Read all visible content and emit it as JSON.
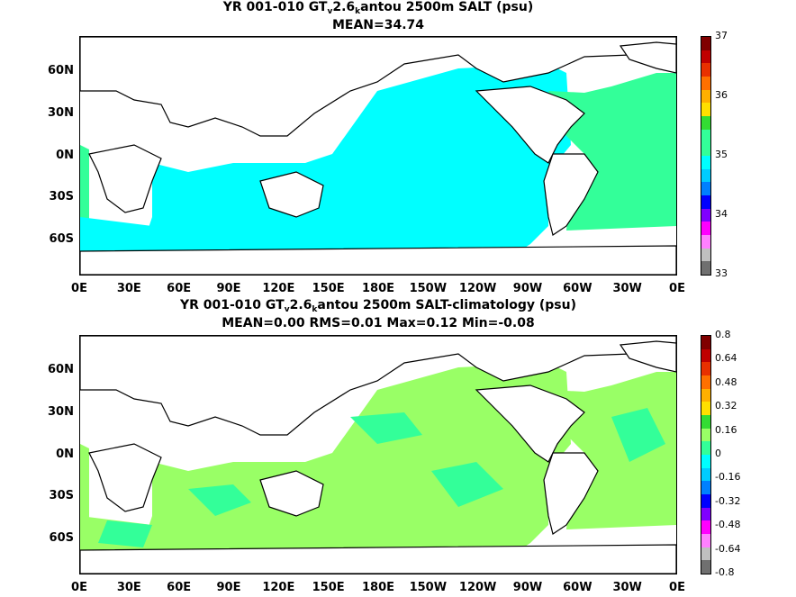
{
  "panels": [
    {
      "title_parts": [
        "YR 001-010 GT",
        "v",
        "2.6",
        "k",
        "antou 2500m SALT (psu)"
      ],
      "subtitle": "MEAN=34.74",
      "fill_color": "#00ffff",
      "secondary_color": "#33ff99",
      "colorbar": {
        "labels": [
          "37",
          "36",
          "35",
          "34",
          "33"
        ],
        "colors": [
          "#800000",
          "#c00000",
          "#e83000",
          "#ff7000",
          "#ffb000",
          "#ffe000",
          "#33dd33",
          "#33ff99",
          "#33ff99",
          "#00ffff",
          "#00ccff",
          "#0080ff",
          "#0000ff",
          "#8000ff",
          "#ff00ff",
          "#ff80ff",
          "#c0c0c0",
          "#707070"
        ]
      }
    },
    {
      "title_parts": [
        "YR 001-010 GT",
        "v",
        "2.6",
        "k",
        "antou 2500m SALT-climatology (psu)"
      ],
      "subtitle": "MEAN=0.00   RMS=0.01   Max=0.12   Min=-0.08",
      "fill_color": "#99ff66",
      "secondary_color": "#33ff99",
      "colorbar": {
        "labels": [
          "0.8",
          "0.64",
          "0.48",
          "0.32",
          "0.16",
          "0",
          "-0.16",
          "-0.32",
          "-0.48",
          "-0.64",
          "-0.8"
        ],
        "colors": [
          "#800000",
          "#c00000",
          "#e83000",
          "#ff7000",
          "#ffb000",
          "#ffe000",
          "#33dd33",
          "#99ff66",
          "#33ff99",
          "#00ffff",
          "#00ccff",
          "#0080ff",
          "#0000ff",
          "#8000ff",
          "#ff00ff",
          "#ff80ff",
          "#c0c0c0",
          "#707070"
        ]
      }
    }
  ],
  "lat_labels": [
    "60N",
    "30N",
    "0N",
    "30S",
    "60S"
  ],
  "lon_labels": [
    "0E",
    "30E",
    "60E",
    "90E",
    "120E",
    "150E",
    "180E",
    "150W",
    "120W",
    "90W",
    "60W",
    "30W",
    "0E"
  ]
}
